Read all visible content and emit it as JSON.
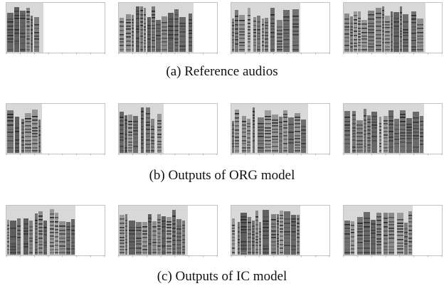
{
  "figure": {
    "panels": [
      {
        "caption": "(a)  Reference audios",
        "spectrogram_count": 4,
        "fill": [
          0.38,
          0.76,
          0.7,
          0.83
        ],
        "variant": "reference"
      },
      {
        "caption": "(b)  Outputs of ORG model",
        "spectrogram_count": 4,
        "fill": [
          0.36,
          0.46,
          0.78,
          0.82
        ],
        "variant": "org"
      },
      {
        "caption": "(c)  Outputs of IC model",
        "spectrogram_count": 4,
        "fill": [
          0.7,
          0.7,
          0.7,
          0.7
        ],
        "variant": "ic"
      }
    ]
  }
}
